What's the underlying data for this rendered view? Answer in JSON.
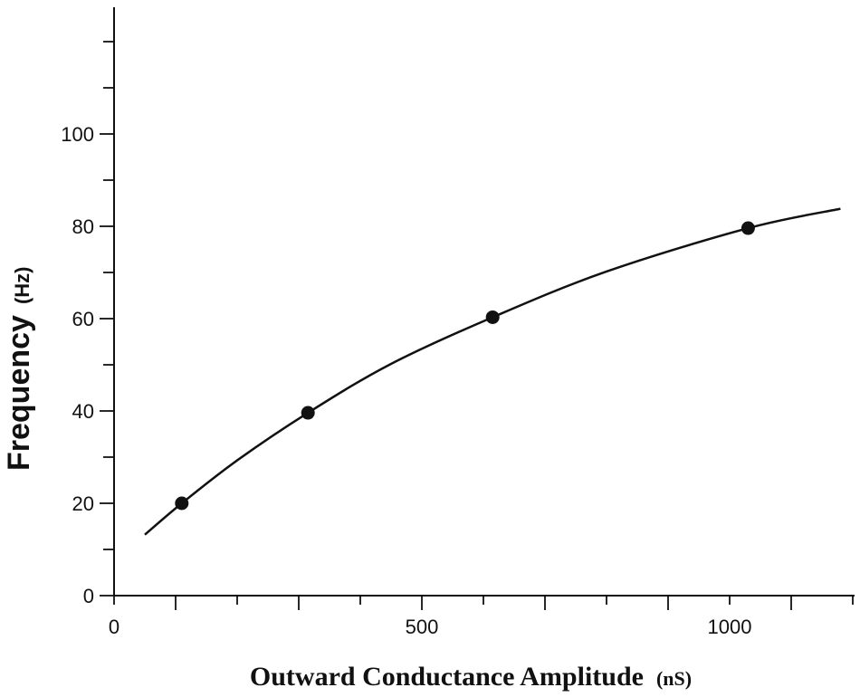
{
  "chart_data": {
    "type": "scatter",
    "title": "",
    "xlabel": "Outward Conductance Amplitude",
    "xlabel_unit": "(nS)",
    "ylabel": "Frequency",
    "ylabel_unit": "(Hz)",
    "xlim": [
      0,
      1200
    ],
    "ylim": [
      0,
      120
    ],
    "x_ticks_labeled": [
      0,
      500,
      1000
    ],
    "x_tick_labels": [
      "0",
      "500",
      "1000"
    ],
    "x_minor_step": 100,
    "y_ticks_labeled": [
      0,
      20,
      40,
      60,
      80,
      100
    ],
    "y_tick_labels": [
      "0",
      "20",
      "40",
      "60",
      "80",
      "100"
    ],
    "y_minor_step": 10,
    "grid": false,
    "points": [
      {
        "x": 110,
        "y": 20
      },
      {
        "x": 315,
        "y": 39.6
      },
      {
        "x": 615,
        "y": 60.3
      },
      {
        "x": 1030,
        "y": 79.6
      }
    ],
    "fit_curve": [
      {
        "x": 50,
        "y": 13.2
      },
      {
        "x": 110,
        "y": 20
      },
      {
        "x": 200,
        "y": 29.3
      },
      {
        "x": 315,
        "y": 39.6
      },
      {
        "x": 450,
        "y": 50.2
      },
      {
        "x": 615,
        "y": 60.3
      },
      {
        "x": 800,
        "y": 70.2
      },
      {
        "x": 1030,
        "y": 79.6
      },
      {
        "x": 1180,
        "y": 83.8
      }
    ]
  }
}
